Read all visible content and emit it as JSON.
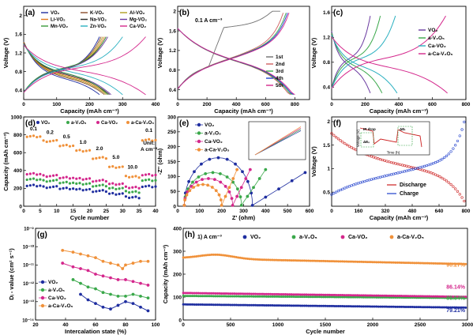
{
  "colors": {
    "VO2": "#1f2ea0",
    "aV": "#3aa84a",
    "CaVO": "#d4278c",
    "aCaV": "#f0913a",
    "red": "#cc1f1f",
    "blue": "#1f3fcc",
    "grey": "#707070",
    "black": "#000000"
  },
  "chart_data": [
    {
      "id": "a",
      "type": "line",
      "panel_label": "(a)",
      "xlabel": "Capacity (mAh cm⁻³)",
      "ylabel": "Voltage (V)",
      "xlim": [
        0,
        400
      ],
      "ylim": [
        0.2,
        2.2
      ],
      "xticks": [
        0,
        100,
        200,
        300,
        400
      ],
      "yticks": [
        0.4,
        0.8,
        1.2,
        1.6,
        2.0
      ],
      "legend": [
        "VO₂",
        "K-VO₂",
        "Al-VO₂",
        "Li-VO₂",
        "Na-VO₂",
        "Mg-VO₂",
        "Mn-VO₂",
        "Zn-VO₂",
        "Ca-VO₂"
      ],
      "series": [
        {
          "name": "VO₂",
          "color": "#1f2ea0",
          "charge_end": 230,
          "discharge_end": 230
        },
        {
          "name": "K-VO₂",
          "color": "#8a4b2a",
          "charge_end": 235,
          "discharge_end": 245
        },
        {
          "name": "Al-VO₂",
          "color": "#b0a020",
          "charge_end": 240,
          "discharge_end": 250
        },
        {
          "name": "Li-VO₂",
          "color": "#e07a20",
          "charge_end": 245,
          "discharge_end": 255
        },
        {
          "name": "Na-VO₂",
          "color": "#2a2a2a",
          "charge_end": 250,
          "discharge_end": 260
        },
        {
          "name": "Mg-VO₂",
          "color": "#6a3aa0",
          "charge_end": 255,
          "discharge_end": 265
        },
        {
          "name": "Mn-VO₂",
          "color": "#3a9a3a",
          "charge_end": 250,
          "discharge_end": 255
        },
        {
          "name": "Zn-VO₂",
          "color": "#2ab0c0",
          "charge_end": 300,
          "discharge_end": 300
        },
        {
          "name": "Ca-VO₂",
          "color": "#d4278c",
          "charge_end": 370,
          "discharge_end": 370
        }
      ]
    },
    {
      "id": "b",
      "type": "line",
      "panel_label": "(b)",
      "annotation": "0.1 A cm⁻³",
      "xlabel": "Capacity (mAh cm⁻³)",
      "ylabel": "Voltage (V)",
      "xlim": [
        0,
        900
      ],
      "ylim": [
        0.2,
        2.1
      ],
      "xticks": [
        0,
        200,
        400,
        600,
        800
      ],
      "yticks": [
        0.4,
        0.8,
        1.2,
        1.6,
        2.0
      ],
      "legend": [
        "1st",
        "2nd",
        "3rd",
        "4th",
        "5th"
      ],
      "series": [
        {
          "name": "1st",
          "color": "#707070",
          "charge_end": 700,
          "discharge_end": 790
        },
        {
          "name": "2nd",
          "color": "#d06060",
          "charge_end": 720,
          "discharge_end": 770
        },
        {
          "name": "3rd",
          "color": "#3aa84a",
          "charge_end": 740,
          "discharge_end": 780
        },
        {
          "name": "4th",
          "color": "#1f3fcc",
          "charge_end": 750,
          "discharge_end": 790
        },
        {
          "name": "5th",
          "color": "#d4278c",
          "charge_end": 760,
          "discharge_end": 800
        }
      ]
    },
    {
      "id": "c",
      "type": "line",
      "panel_label": "(c)",
      "xlabel": "Capacity (mAh cm⁻³)",
      "ylabel": "Voltage (V)",
      "xlim": [
        0,
        800
      ],
      "ylim": [
        0.2,
        1.7
      ],
      "xticks": [
        0,
        200,
        400,
        600,
        800
      ],
      "yticks": [
        0.4,
        0.8,
        1.2,
        1.6
      ],
      "legend": [
        "VO₂",
        "a-V₂O₅",
        "Ca-VO₂",
        "a-Ca-V₂O₅"
      ],
      "series": [
        {
          "name": "VO₂",
          "color": "#6a3aa0",
          "charge_end": 230,
          "discharge_end": 230
        },
        {
          "name": "a-V₂O₅",
          "color": "#3aa84a",
          "charge_end": 290,
          "discharge_end": 300
        },
        {
          "name": "Ca-VO₂",
          "color": "#2ab0c0",
          "charge_end": 380,
          "discharge_end": 390
        },
        {
          "name": "a-Ca-V₂O₅",
          "color": "#d4278c",
          "charge_end": 680,
          "discharge_end": 690
        }
      ]
    },
    {
      "id": "d",
      "type": "scatter",
      "panel_label": "(d)",
      "xlabel": "Cycle number",
      "ylabel": "Capacity (mAh cm⁻³)",
      "xlim": [
        0,
        40
      ],
      "ylim": [
        0,
        1000
      ],
      "xticks": [
        0,
        5,
        10,
        15,
        20,
        25,
        30,
        35,
        40
      ],
      "yticks": [
        0,
        200,
        400,
        600,
        800,
        1000
      ],
      "legend": [
        "VO₂",
        "a-V₂O₅",
        "Ca-VO₂",
        "a-Ca-V₂O₅"
      ],
      "rate_labels": [
        "0.1",
        "0.2",
        "0.5",
        "1.0",
        "2.0",
        "5.0",
        "10.0",
        "0.1"
      ],
      "unit_label": [
        "Unit:",
        "A cm⁻³"
      ],
      "series": [
        {
          "name": "VO₂",
          "color": "#1f2ea0",
          "levels": [
            230,
            215,
            200,
            185,
            170,
            140,
            100,
            220
          ]
        },
        {
          "name": "a-V₂O₅",
          "color": "#3aa84a",
          "levels": [
            300,
            285,
            265,
            250,
            230,
            200,
            160,
            290
          ]
        },
        {
          "name": "Ca-VO₂",
          "color": "#d4278c",
          "levels": [
            360,
            340,
            320,
            305,
            285,
            250,
            210,
            350
          ]
        },
        {
          "name": "a-Ca-V₂O₅",
          "color": "#f0913a",
          "levels": [
            780,
            730,
            680,
            620,
            540,
            440,
            330,
            740
          ]
        }
      ]
    },
    {
      "id": "e",
      "type": "scatter",
      "panel_label": "(e)",
      "xlabel": "Z' (ohm)",
      "ylabel": "-Z'' (ohm)",
      "xlim": [
        0,
        600
      ],
      "ylim": [
        0,
        300
      ],
      "xticks": [
        0,
        100,
        200,
        300,
        400,
        500,
        600
      ],
      "yticks": [
        0,
        50,
        100,
        150,
        200,
        250,
        300
      ],
      "legend": [
        "VO₂",
        "a-V₂O₅",
        "Ca-VO₂",
        "a-Ca-V₂O₅"
      ],
      "series": [
        {
          "name": "VO₂",
          "color": "#1f2ea0",
          "semi_start": 30,
          "semi_end": 340,
          "semi_height": 160,
          "tail_end": [
            580,
            110
          ]
        },
        {
          "name": "a-V₂O₅",
          "color": "#3aa84a",
          "semi_start": 30,
          "semi_end": 290,
          "semi_height": 110,
          "tail_end": [
            400,
            120
          ]
        },
        {
          "name": "Ca-VO₂",
          "color": "#d4278c",
          "semi_start": 30,
          "semi_end": 250,
          "semi_height": 90,
          "tail_end": [
            330,
            120
          ]
        },
        {
          "name": "a-Ca-V₂O₅",
          "color": "#f0913a",
          "semi_start": 30,
          "semi_end": 200,
          "semi_height": 70,
          "tail_end": [
            270,
            120
          ]
        }
      ]
    },
    {
      "id": "f",
      "type": "scatter",
      "panel_label": "(f)",
      "xlabel": "Capacity (mAh cm⁻³)",
      "ylabel": "Voltage (V)",
      "xlim": [
        0,
        800
      ],
      "ylim": [
        0.2,
        2.1
      ],
      "xticks": [
        0,
        160,
        320,
        480,
        640,
        800
      ],
      "yticks": [
        0.5,
        1.0,
        1.5,
        2.0
      ],
      "legend": [
        "Discharge",
        "Charge"
      ],
      "inset_labels": [
        "ΔEₛ",
        "ΔEₜ",
        "IR drop",
        "Time (h)",
        "Voltage (V)"
      ],
      "series": [
        {
          "name": "Discharge",
          "color": "#cc1f1f"
        },
        {
          "name": "Charge",
          "color": "#1f3fcc"
        }
      ]
    },
    {
      "id": "g",
      "type": "line",
      "panel_label": "(g)",
      "xlabel": "Intercalation state (%)",
      "ylabel": "Dᵢ - value (cm² s⁻¹)",
      "xlim": [
        20,
        100
      ],
      "ylim_log": [
        -14,
        -9
      ],
      "xticks": [
        20,
        40,
        60,
        80,
        100
      ],
      "ytick_labels": [
        "10⁻¹⁴",
        "10⁻¹³",
        "10⁻¹²",
        "10⁻¹¹",
        "10⁻¹⁰",
        "10⁻⁹"
      ],
      "legend": [
        "VO₂",
        "a-V₂O₅",
        "Ca-VO₂",
        "a-Ca-V₂O₅"
      ],
      "series": [
        {
          "name": "VO₂",
          "color": "#1f2ea0",
          "x": [
            50,
            55,
            60,
            65,
            70,
            75,
            80,
            85,
            90,
            95
          ],
          "y": [
            -12.6,
            -12.9,
            -13.1,
            -13.3,
            -13.4,
            -13.2,
            -13.0,
            -13.1,
            -13.3,
            -13.5
          ]
        },
        {
          "name": "a-V₂O₅",
          "color": "#3aa84a",
          "x": [
            45,
            50,
            55,
            60,
            65,
            70,
            75,
            80,
            85,
            90,
            95
          ],
          "y": [
            -11.8,
            -12.0,
            -12.2,
            -12.3,
            -12.5,
            -12.6,
            -12.7,
            -12.7,
            -12.6,
            -12.7,
            -12.8
          ]
        },
        {
          "name": "Ca-VO₂",
          "color": "#d4278c",
          "x": [
            38,
            45,
            50,
            55,
            60,
            65,
            70,
            75,
            80,
            85,
            90,
            95
          ],
          "y": [
            -10.9,
            -11.1,
            -11.2,
            -11.3,
            -11.5,
            -11.6,
            -11.7,
            -11.8,
            -11.8,
            -11.9,
            -12.0,
            -12.1
          ]
        },
        {
          "name": "a-Ca-V₂O₅",
          "color": "#f0913a",
          "x": [
            38,
            45,
            50,
            55,
            60,
            65,
            70,
            75,
            78,
            80,
            85,
            90,
            95
          ],
          "y": [
            -10.2,
            -10.3,
            -10.4,
            -10.5,
            -10.6,
            -10.8,
            -10.9,
            -11.0,
            -11.2,
            -11.0,
            -10.9,
            -10.8,
            -10.8
          ]
        }
      ]
    },
    {
      "id": "h",
      "type": "scatter",
      "panel_label": "(h)",
      "annotation": "1) A cm⁻³",
      "xlabel": "Cycle number",
      "ylabel": "Capacity (mAh cm⁻³)",
      "xlim": [
        0,
        3000
      ],
      "ylim": [
        0,
        400
      ],
      "xticks": [
        0,
        500,
        1000,
        1500,
        2000,
        2500,
        3000
      ],
      "yticks": [
        0,
        100,
        200,
        300,
        400
      ],
      "legend": [
        "VO₂",
        "a-V₂O₅",
        "Ca-VO₂",
        "a-Ca-V₂O₅"
      ],
      "retention_labels": [
        "90.27%",
        "86.14%",
        "80.54%",
        "79.21%"
      ],
      "series": [
        {
          "name": "VO₂",
          "color": "#1f2ea0",
          "start": 68,
          "end": 54
        },
        {
          "name": "a-V₂O₅",
          "color": "#3aa84a",
          "start": 105,
          "end": 96
        },
        {
          "name": "Ca-VO₂",
          "color": "#d4278c",
          "start": 118,
          "end": 101
        },
        {
          "name": "a-Ca-V₂O₅",
          "color": "#f0913a",
          "start": 270,
          "end": 244
        }
      ]
    }
  ]
}
